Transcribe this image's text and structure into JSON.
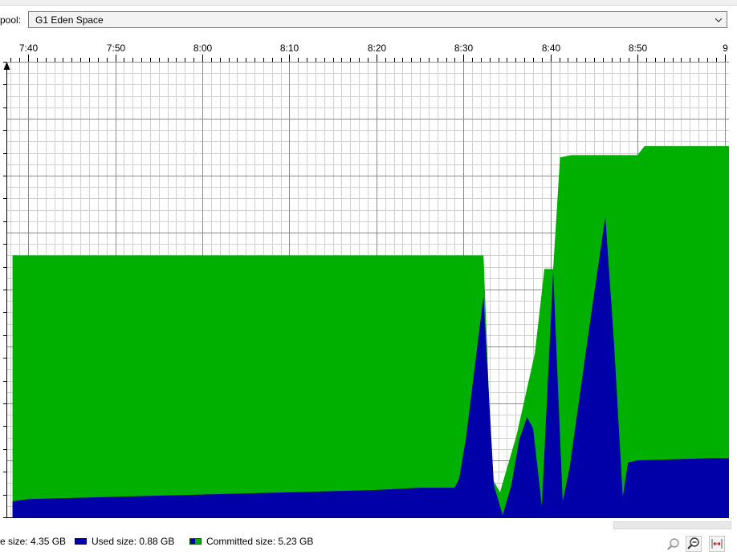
{
  "pool": {
    "label": "pool:",
    "selected": "G1 Eden Space"
  },
  "legend": {
    "max_size": "e size: 4.35 GB",
    "used_size": "Used size: 0.88 GB",
    "committed_size": "Committed size: 5.23 GB"
  },
  "colors": {
    "used": "#0000a8",
    "committed": "#00b000",
    "grid_major": "#8c8c8c",
    "grid_minor": "#d0d0d0"
  },
  "icons": [
    "zoom-in-icon",
    "zoom-out-icon",
    "fit-to-window-icon",
    "chevron-down-icon"
  ],
  "chart_data": {
    "type": "area",
    "xlim": [
      7.5,
      90.5
    ],
    "ylim": [
      0,
      20
    ],
    "x_unit": "minutes past 7:30",
    "x_ticks": [
      {
        "x": 0,
        "label": ")"
      },
      {
        "x": 10,
        "label": "7:40"
      },
      {
        "x": 20,
        "label": "7:50"
      },
      {
        "x": 30,
        "label": "8:00"
      },
      {
        "x": 40,
        "label": "8:10"
      },
      {
        "x": 50,
        "label": "8:20"
      },
      {
        "x": 60,
        "label": "8:30"
      },
      {
        "x": 70,
        "label": "8:40"
      },
      {
        "x": 80,
        "label": "8:50"
      },
      {
        "x": 90,
        "label": "9"
      }
    ],
    "series": [
      {
        "key": "committed",
        "x": [
          8.2,
          62.3,
          63.3,
          64.2,
          66.1,
          68.2,
          69.3,
          70.3,
          71.1,
          72.4,
          80.0,
          80.8,
          88.5,
          90.5
        ],
        "y": [
          11.5,
          11.5,
          1.7,
          1.1,
          3.6,
          7.2,
          10.9,
          10.9,
          15.8,
          15.9,
          15.9,
          16.3,
          16.3,
          16.3
        ]
      },
      {
        "key": "used",
        "x": [
          8.2,
          10.0,
          20.0,
          30.0,
          40.0,
          50.0,
          55.0,
          57.5,
          59.0,
          59.5,
          60.3,
          62.3,
          63.5,
          64.5,
          65.5,
          66.4,
          67.3,
          68.0,
          69.0,
          70.3,
          71.4,
          72.2,
          73.3,
          74.7,
          76.3,
          77.3,
          78.3,
          78.9,
          80.0,
          88.5,
          90.5
        ],
        "y": [
          0.7,
          0.8,
          0.9,
          1.0,
          1.1,
          1.2,
          1.3,
          1.3,
          1.3,
          1.7,
          3.5,
          9.7,
          1.4,
          0.1,
          1.4,
          3.4,
          4.4,
          3.9,
          0.5,
          10.8,
          0.7,
          2.2,
          5.2,
          9.0,
          13.2,
          7.6,
          0.9,
          2.4,
          2.5,
          2.6,
          2.6
        ]
      }
    ]
  }
}
